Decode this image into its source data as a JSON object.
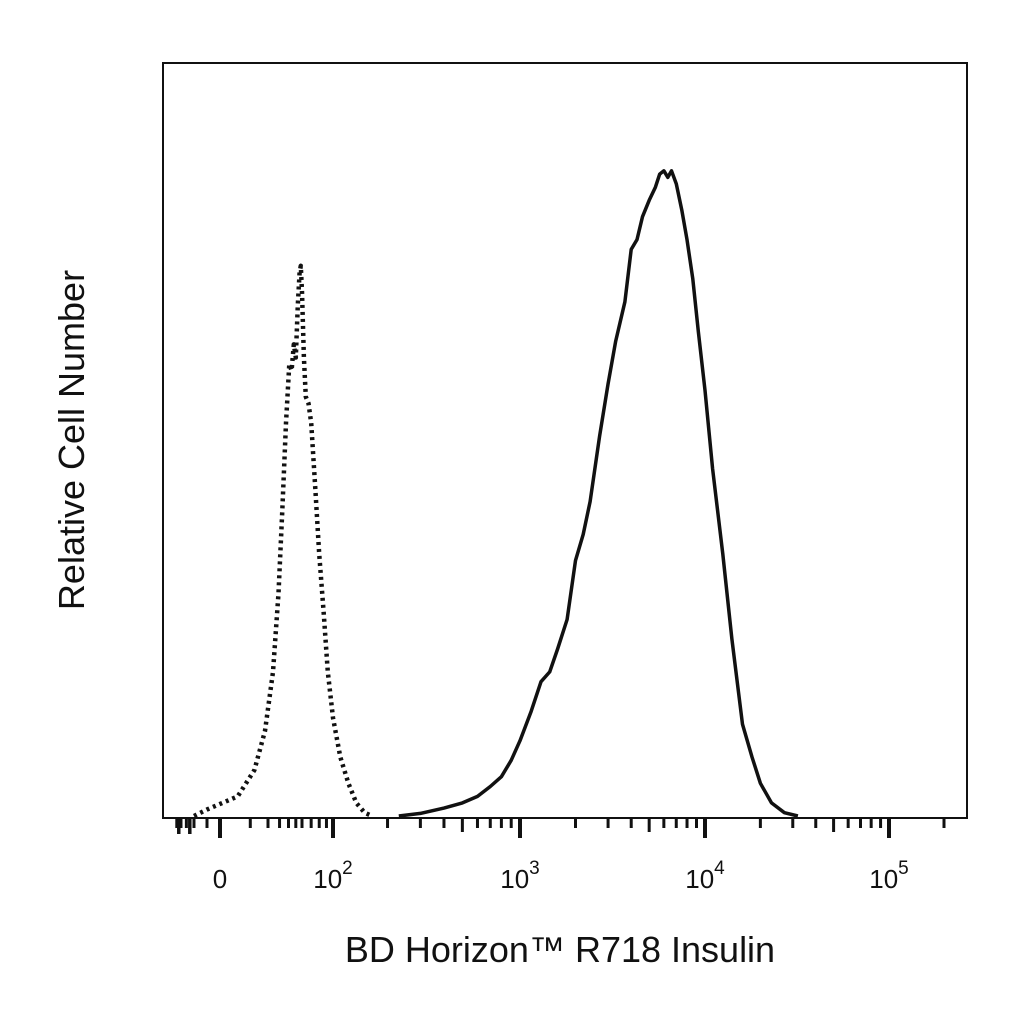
{
  "chart_data": {
    "type": "line",
    "title": "",
    "xlabel": "BD Horizon™ R718 Insulin",
    "ylabel": "Relative Cell Number",
    "x_scale": "biexponential",
    "xlim": [
      -100,
      200000
    ],
    "ylim": [
      0,
      100
    ],
    "grid": false,
    "legend": "none",
    "x_ticks": [
      {
        "value": 0,
        "base": "0",
        "exp": ""
      },
      {
        "value": 100,
        "base": "10",
        "exp": "2"
      },
      {
        "value": 1000,
        "base": "10",
        "exp": "3"
      },
      {
        "value": 10000,
        "base": "10",
        "exp": "4"
      },
      {
        "value": 100000,
        "base": "10",
        "exp": "5"
      }
    ],
    "series": [
      {
        "style": "dotted",
        "color": "#111111",
        "points": [
          [
            -30,
            0
          ],
          [
            -10,
            1
          ],
          [
            5,
            3
          ],
          [
            12,
            7
          ],
          [
            18,
            13
          ],
          [
            24,
            22
          ],
          [
            29,
            34
          ],
          [
            33,
            47
          ],
          [
            37,
            60
          ],
          [
            41,
            69
          ],
          [
            44,
            68
          ],
          [
            47,
            72
          ],
          [
            50,
            70
          ],
          [
            53,
            78
          ],
          [
            56,
            83
          ],
          [
            58,
            84
          ],
          [
            60,
            80
          ],
          [
            62,
            70
          ],
          [
            64,
            64
          ],
          [
            67,
            63
          ],
          [
            70,
            60
          ],
          [
            75,
            50
          ],
          [
            80,
            40
          ],
          [
            86,
            31
          ],
          [
            92,
            22
          ],
          [
            100,
            15
          ],
          [
            110,
            9
          ],
          [
            122,
            5
          ],
          [
            135,
            2
          ],
          [
            150,
            0.5
          ],
          [
            165,
            0
          ]
        ]
      },
      {
        "style": "solid",
        "color": "#111111",
        "points": [
          [
            230,
            0
          ],
          [
            300,
            0.4
          ],
          [
            400,
            1.2
          ],
          [
            500,
            2
          ],
          [
            600,
            3
          ],
          [
            700,
            4.5
          ],
          [
            800,
            6
          ],
          [
            900,
            8.5
          ],
          [
            1000,
            11.5
          ],
          [
            1150,
            16
          ],
          [
            1300,
            20.5
          ],
          [
            1450,
            22
          ],
          [
            1600,
            25.5
          ],
          [
            1800,
            30
          ],
          [
            2000,
            39
          ],
          [
            2200,
            43
          ],
          [
            2400,
            48
          ],
          [
            2700,
            58
          ],
          [
            3000,
            66
          ],
          [
            3300,
            72.5
          ],
          [
            3700,
            78.5
          ],
          [
            4000,
            86.5
          ],
          [
            4300,
            88
          ],
          [
            4600,
            91.5
          ],
          [
            5000,
            94
          ],
          [
            5400,
            96
          ],
          [
            5700,
            98
          ],
          [
            6000,
            98.5
          ],
          [
            6300,
            97.5
          ],
          [
            6600,
            98.5
          ],
          [
            7000,
            96.5
          ],
          [
            7500,
            92.5
          ],
          [
            8000,
            88
          ],
          [
            8600,
            82
          ],
          [
            9200,
            74
          ],
          [
            10000,
            65
          ],
          [
            11000,
            53
          ],
          [
            12500,
            40
          ],
          [
            14000,
            27
          ],
          [
            16000,
            14
          ],
          [
            18000,
            9
          ],
          [
            20000,
            5
          ],
          [
            23000,
            2
          ],
          [
            27000,
            0.5
          ],
          [
            32000,
            0
          ]
        ]
      }
    ]
  }
}
